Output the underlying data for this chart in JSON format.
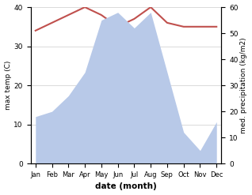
{
  "months": [
    "Jan",
    "Feb",
    "Mar",
    "Apr",
    "May",
    "Jun",
    "Jul",
    "Aug",
    "Sep",
    "Oct",
    "Nov",
    "Dec"
  ],
  "temp": [
    34,
    36,
    38,
    40,
    38,
    35,
    37,
    40,
    36,
    35,
    35,
    35
  ],
  "precip": [
    18,
    20,
    26,
    35,
    55,
    58,
    52,
    58,
    35,
    12,
    5,
    16
  ],
  "temp_color": "#c0504d",
  "precip_color": "#b8c9e8",
  "ylabel_left": "max temp (C)",
  "ylabel_right": "med. precipitation (kg/m2)",
  "xlabel": "date (month)",
  "ylim_left": [
    0,
    40
  ],
  "ylim_right": [
    0,
    60
  ],
  "yticks_left": [
    0,
    10,
    20,
    30,
    40
  ],
  "yticks_right": [
    0,
    10,
    20,
    30,
    40,
    50,
    60
  ],
  "bg_color": "#ffffff",
  "grid_color": "#cccccc"
}
